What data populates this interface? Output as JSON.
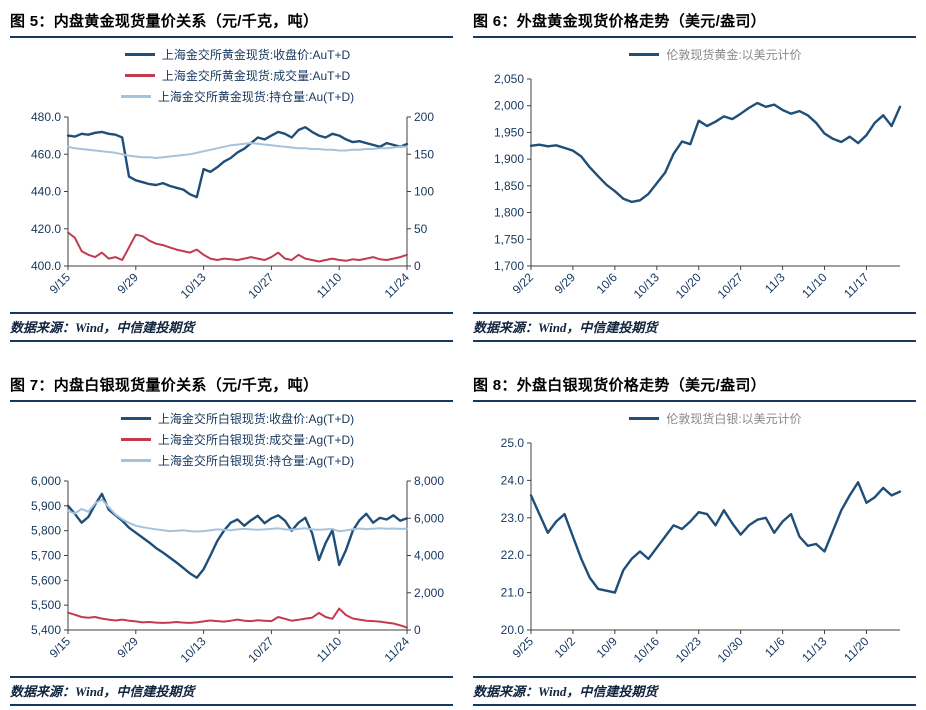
{
  "page": {
    "accent_color": "#17375E",
    "axis_label_color": "#17375E",
    "axis_line_color": "#404040",
    "background": "#ffffff"
  },
  "chart_data": [
    {
      "id": "gold-domestic",
      "type": "line",
      "title": "图 5：内盘黄金现货量价关系（元/千克，吨）",
      "source": "数据来源：Wind，中信建投期货",
      "legend_position": "top",
      "legend_color": "#17375E",
      "grid": false,
      "x_labels": [
        "9/15",
        "9/29",
        "10/13",
        "10/27",
        "11/10",
        "11/24"
      ],
      "x_label_every": 10,
      "left_axis": {
        "min": 400,
        "max": 480,
        "step": 20,
        "format": "1dp"
      },
      "right_axis": {
        "min": 0,
        "max": 200,
        "step": 50,
        "format": "int"
      },
      "series": [
        {
          "name": "上海金交所黄金现货:收盘价:AuT+D",
          "color": "#1F4E79",
          "axis": "left",
          "width": 2.4,
          "values": [
            470,
            469.5,
            471,
            470.5,
            471.5,
            472,
            471,
            470.5,
            469,
            448,
            446,
            445,
            444,
            443.5,
            444.5,
            443,
            442,
            441,
            438.5,
            437,
            452,
            450.5,
            453,
            456,
            458,
            461,
            463,
            466,
            469,
            468,
            470,
            472,
            471,
            469,
            473,
            474.5,
            472,
            470,
            469,
            471,
            470,
            468,
            466.5,
            467,
            466,
            465,
            464,
            466,
            465,
            464,
            465.5
          ]
        },
        {
          "name": "上海金交所黄金现货:成交量:AuT+D",
          "color": "#C23B4E",
          "axis": "right",
          "width": 2,
          "values": [
            45,
            38,
            20,
            15,
            12,
            18,
            10,
            12,
            8,
            25,
            42,
            40,
            34,
            30,
            28,
            25,
            22,
            20,
            18,
            22,
            15,
            10,
            8,
            10,
            9,
            8,
            10,
            12,
            10,
            8,
            12,
            18,
            10,
            8,
            15,
            10,
            8,
            6,
            8,
            10,
            8,
            7,
            9,
            8,
            10,
            12,
            9,
            8,
            10,
            12,
            15
          ]
        },
        {
          "name": "上海金交所黄金现货:持仓量:Au(T+D)",
          "color": "#A6C3DC",
          "axis": "right",
          "width": 2,
          "values": [
            160,
            158,
            157,
            156,
            155,
            154,
            153,
            152,
            150,
            148,
            147,
            146,
            146,
            145,
            146,
            147,
            148,
            149,
            150,
            152,
            154,
            156,
            158,
            160,
            162,
            163,
            164,
            165,
            164,
            163,
            162,
            161,
            160,
            159,
            158,
            158,
            157,
            157,
            156,
            156,
            155,
            155,
            156,
            156,
            157,
            157,
            158,
            158,
            159,
            160,
            160
          ]
        }
      ]
    },
    {
      "id": "gold-london",
      "type": "line",
      "title": "图 6：外盘黄金现货价格走势（美元/盎司）",
      "source": "数据来源：Wind，中信建投期货",
      "legend_position": "top",
      "legend_color": "#898989",
      "grid": false,
      "x_labels": [
        "9/22",
        "9/29",
        "10/6",
        "10/13",
        "10/20",
        "10/27",
        "11/3",
        "11/10",
        "11/17"
      ],
      "x_label_every": 5,
      "left_axis": {
        "min": 1700,
        "max": 2050,
        "step": 50,
        "format": "comma"
      },
      "series": [
        {
          "name": "伦敦现货黄金:以美元计价",
          "color": "#1F4E79",
          "axis": "left",
          "width": 2.4,
          "values": [
            1925,
            1927,
            1924,
            1926,
            1921,
            1916,
            1905,
            1885,
            1868,
            1852,
            1840,
            1826,
            1820,
            1823,
            1835,
            1855,
            1875,
            1910,
            1933,
            1928,
            1972,
            1962,
            1970,
            1980,
            1975,
            1985,
            1996,
            2005,
            1998,
            2002,
            1992,
            1985,
            1990,
            1982,
            1968,
            1948,
            1938,
            1932,
            1942,
            1930,
            1945,
            1968,
            1982,
            1962,
            1998
          ]
        }
      ]
    },
    {
      "id": "silver-domestic",
      "type": "line",
      "title": "图 7：内盘白银现货量价关系（元/千克，吨）",
      "source": "数据来源：Wind，中信建投期货",
      "legend_position": "top",
      "legend_color": "#17375E",
      "grid": false,
      "x_labels": [
        "9/15",
        "9/29",
        "10/13",
        "10/27",
        "11/10",
        "11/24"
      ],
      "x_label_every": 10,
      "left_axis": {
        "min": 5400,
        "max": 6000,
        "step": 100,
        "format": "comma"
      },
      "right_axis": {
        "min": 0,
        "max": 8000,
        "step": 2000,
        "format": "comma"
      },
      "series": [
        {
          "name": "上海金交所白银现货:收盘价:Ag(T+D)",
          "color": "#1F4E79",
          "axis": "left",
          "width": 2.4,
          "values": [
            5900,
            5868,
            5832,
            5855,
            5905,
            5948,
            5885,
            5862,
            5840,
            5812,
            5792,
            5772,
            5752,
            5730,
            5712,
            5692,
            5672,
            5650,
            5628,
            5610,
            5645,
            5700,
            5758,
            5800,
            5832,
            5845,
            5820,
            5842,
            5860,
            5830,
            5850,
            5862,
            5840,
            5800,
            5832,
            5852,
            5790,
            5682,
            5750,
            5802,
            5662,
            5722,
            5800,
            5842,
            5868,
            5832,
            5852,
            5845,
            5862,
            5840,
            5850
          ]
        },
        {
          "name": "上海金交所白银现货:成交量:Ag(T+D)",
          "color": "#C23B4E",
          "axis": "right",
          "width": 2,
          "values": [
            930,
            820,
            700,
            660,
            700,
            610,
            560,
            510,
            560,
            500,
            460,
            410,
            430,
            400,
            380,
            400,
            430,
            400,
            380,
            410,
            460,
            510,
            480,
            450,
            500,
            560,
            500,
            480,
            520,
            500,
            480,
            700,
            600,
            500,
            550,
            610,
            660,
            920,
            700,
            600,
            1150,
            800,
            620,
            560,
            500,
            480,
            450,
            400,
            350,
            250,
            130
          ]
        },
        {
          "name": "上海金交所白银现货:持仓量:Ag(T+D)",
          "color": "#A6C3DC",
          "axis": "right",
          "width": 2,
          "values": [
            6400,
            6250,
            6500,
            6350,
            6800,
            7000,
            6600,
            6200,
            5950,
            5750,
            5600,
            5520,
            5460,
            5400,
            5360,
            5310,
            5330,
            5360,
            5310,
            5290,
            5310,
            5360,
            5400,
            5380,
            5360,
            5400,
            5430,
            5400,
            5380,
            5400,
            5430,
            5460,
            5400,
            5380,
            5430,
            5460,
            5400,
            5380,
            5400,
            5430,
            5300,
            5350,
            5400,
            5450,
            5420,
            5440,
            5460,
            5440,
            5450,
            5430,
            5440
          ]
        }
      ]
    },
    {
      "id": "silver-london",
      "type": "line",
      "title": "图 8：外盘白银现货价格走势（美元/盎司）",
      "source": "数据来源：Wind，中信建投期货",
      "legend_position": "top",
      "legend_color": "#898989",
      "grid": false,
      "x_labels": [
        "9/25",
        "10/2",
        "10/9",
        "10/16",
        "10/23",
        "10/30",
        "11/6",
        "11/13",
        "11/20"
      ],
      "x_label_every": 5,
      "left_axis": {
        "min": 20,
        "max": 25,
        "step": 1,
        "format": "1dp"
      },
      "series": [
        {
          "name": "伦敦现货白银:以美元计价",
          "color": "#1F4E79",
          "axis": "left",
          "width": 2.4,
          "values": [
            23.6,
            23.1,
            22.6,
            22.9,
            23.1,
            22.5,
            21.9,
            21.4,
            21.1,
            21.05,
            21.0,
            21.6,
            21.9,
            22.1,
            21.9,
            22.2,
            22.5,
            22.8,
            22.7,
            22.9,
            23.15,
            23.1,
            22.8,
            23.2,
            22.85,
            22.55,
            22.8,
            22.95,
            23.0,
            22.6,
            22.9,
            23.1,
            22.5,
            22.25,
            22.3,
            22.1,
            22.65,
            23.2,
            23.6,
            23.95,
            23.4,
            23.55,
            23.8,
            23.6,
            23.7
          ]
        }
      ]
    }
  ]
}
